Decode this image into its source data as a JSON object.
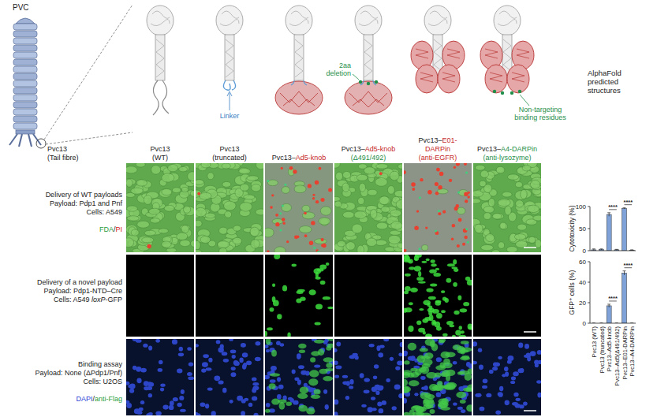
{
  "schematic": {
    "pvc_label": "PVC",
    "fibre_label": "Pvc13",
    "fibre_sublabel": "(Tail fibre)",
    "structures_label": "AlphaFold predicted structures",
    "linker_label": {
      "text": "Linker",
      "color": "#3b82c4"
    },
    "deletion_label": {
      "text": "2aa deletion",
      "color": "#1f8f4a"
    },
    "binding_label": {
      "text": "Non-targeting binding residues",
      "color": "#1f8f4a"
    }
  },
  "columns": [
    [
      [
        {
          "text": "Pvc13"
        }
      ],
      [
        {
          "text": "(WT)"
        }
      ]
    ],
    [
      [
        {
          "text": "Pvc13"
        }
      ],
      [
        {
          "text": "(truncated)"
        }
      ]
    ],
    [
      [
        {
          "text": "Pvc13–"
        },
        {
          "text": "Ad5-knob",
          "color": "#c62828"
        }
      ]
    ],
    [
      [
        {
          "text": "Pvc13–"
        },
        {
          "text": "Ad5-knob",
          "color": "#c62828"
        }
      ],
      [
        {
          "text": "(Δ491/492)",
          "color": "#1f8f4a"
        }
      ]
    ],
    [
      [
        {
          "text": "Pvc13–"
        },
        {
          "text": "E01-",
          "color": "#c62828"
        }
      ],
      [
        {
          "text": "DARPin",
          "color": "#c62828"
        }
      ],
      [
        {
          "text": "(anti-EGFR)",
          "color": "#c62828"
        }
      ]
    ],
    [
      [
        {
          "text": "Pvc13–"
        },
        {
          "text": "A4-DARPin",
          "color": "#1f8f4a"
        }
      ],
      [
        {
          "text": "(anti-lysozyme)",
          "color": "#1f8f4a"
        }
      ]
    ]
  ],
  "rows": [
    {
      "lines": [
        [
          {
            "text": "Delivery of WT payloads"
          }
        ],
        [
          {
            "text": "Payload: Pdp1 and Pnf"
          }
        ],
        [
          {
            "text": "Cells: A549"
          }
        ]
      ],
      "stain": [
        {
          "text": "FDA",
          "color": "#2e9e3e"
        },
        {
          "text": "/"
        },
        {
          "text": "PI",
          "color": "#d62020"
        }
      ]
    },
    {
      "lines": [
        [
          {
            "text": "Delivery of a novel payload"
          }
        ],
        [
          {
            "text": "Payload: Pdp1-NTD–Cre"
          }
        ],
        [
          {
            "text": "Cells: A549 "
          },
          {
            "text": "loxP",
            "italic": true
          },
          {
            "text": "-GFP"
          }
        ]
      ]
    },
    {
      "lines": [
        [
          {
            "text": "Binding assay"
          }
        ],
        [
          {
            "text": "Payload: None (ΔPdp1/Pnf)"
          }
        ],
        [
          {
            "text": "Cells: U2OS"
          }
        ]
      ],
      "stain": [
        {
          "text": "DAPI",
          "color": "#2b3fd6"
        },
        {
          "text": "/"
        },
        {
          "text": "anti-Flag",
          "color": "#2e9e3e"
        }
      ]
    }
  ],
  "chart_data": [
    {
      "type": "bar",
      "y_label": "Cytotoxicity (%)",
      "values": [
        2,
        3,
        82,
        2,
        96,
        1
      ],
      "errors": [
        2,
        1,
        4,
        1,
        1,
        1
      ],
      "ylim": [
        0,
        100
      ],
      "yticks": [
        0,
        50,
        100
      ],
      "color": "#7fa3d9",
      "tick_labels": "y",
      "annotations": [
        {
          "between": [
            2,
            3
          ],
          "label": "****"
        },
        {
          "between": [
            4,
            5
          ],
          "label": "****"
        }
      ]
    },
    {
      "type": "bar",
      "y_label": "GFP⁺ cells (%)",
      "categories": [
        "Pvc13 (WT)",
        "Pvc13 (truncated)",
        "Pvc13–Ad5-knob",
        "Pvc13–Ad5(Δ491/492)",
        "Pvc13–E01-DARPin",
        "Pvc13–A4-DARPin"
      ],
      "values": [
        0,
        0,
        17,
        0,
        49,
        0
      ],
      "errors": [
        0.2,
        0.2,
        1.5,
        0.2,
        2,
        0.2
      ],
      "ylim": [
        0,
        60
      ],
      "yticks": [
        0,
        20,
        40,
        60
      ],
      "color": "#7fa3d9",
      "annotations": [
        {
          "between": [
            2,
            3
          ],
          "label": "****"
        },
        {
          "between": [
            4,
            5
          ],
          "label": "****"
        }
      ]
    }
  ]
}
